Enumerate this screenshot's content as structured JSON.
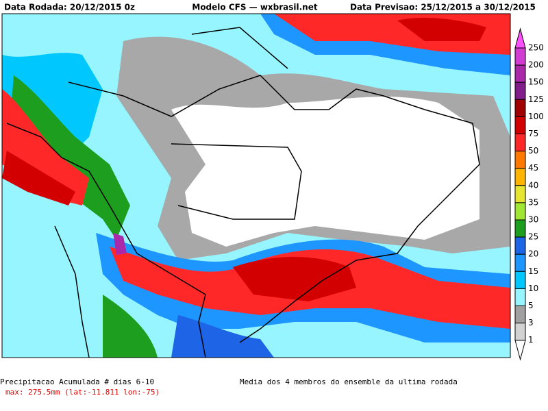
{
  "header": {
    "left": "Data Rodada: 20/12/2015 0z",
    "center": "Modelo CFS — wxbrasil.net",
    "right": "Data Previsao: 25/12/2015 a 30/12/2015"
  },
  "legend": {
    "levels": [
      250,
      200,
      150,
      125,
      100,
      75,
      50,
      45,
      40,
      35,
      30,
      25,
      20,
      15,
      10,
      5,
      3,
      1
    ],
    "colors": [
      "#ff50ff",
      "#d23cd2",
      "#aa28aa",
      "#821e8c",
      "#a00000",
      "#d20000",
      "#ff2828",
      "#ff7800",
      "#ffb400",
      "#e6e632",
      "#a0e632",
      "#1e9e1e",
      "#1e64e6",
      "#1e96ff",
      "#00c8ff",
      "#96f5ff",
      "#a0a0a0",
      "#d2d2d2",
      "#ffffff"
    ]
  },
  "footer": {
    "title": "Precipitacao Acumulada # dias 6-10",
    "max": "max: 275.5mm (lat:-11.811 lon:-75)",
    "note": "Media dos 4 membros do ensemble da ultima rodada"
  }
}
